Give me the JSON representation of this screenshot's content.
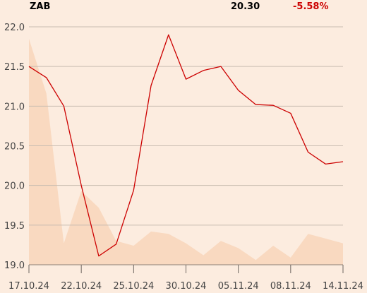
{
  "header": {
    "ticker": "ZAB",
    "price": "20.30",
    "change": "-5.58%"
  },
  "colors": {
    "background": "#fcecdf",
    "line": "#cc0000",
    "area": "#f9d9c0",
    "grid": "#c8bcb0",
    "negative": "#cc0000"
  },
  "chart_data": {
    "type": "line",
    "title": "",
    "xlabel": "",
    "ylabel": "",
    "ylim": [
      19.0,
      22.0
    ],
    "yticks": [
      "22.0",
      "21.5",
      "21.0",
      "20.5",
      "20.0",
      "19.5",
      "19.0"
    ],
    "xtick_labels": [
      "17.10.24",
      "22.10.24",
      "25.10.24",
      "30.10.24",
      "05.11.24",
      "08.11.24",
      "14.11.24"
    ],
    "xtick_index": [
      0,
      3,
      6,
      9,
      12,
      15,
      18
    ],
    "grid": true,
    "series": [
      {
        "kind": "price-line",
        "values": [
          21.5,
          21.36,
          21.0,
          20.0,
          19.11,
          19.26,
          19.94,
          21.26,
          21.9,
          21.34,
          21.45,
          21.5,
          21.2,
          21.02,
          21.01,
          20.91,
          20.42,
          20.27,
          20.3
        ]
      },
      {
        "kind": "volume-area",
        "relative_level": [
          0.95,
          0.72,
          0.09,
          0.31,
          0.24,
          0.1,
          0.08,
          0.14,
          0.13,
          0.09,
          0.04,
          0.1,
          0.07,
          0.02,
          0.08,
          0.03,
          0.13,
          0.11,
          0.09
        ]
      }
    ]
  }
}
